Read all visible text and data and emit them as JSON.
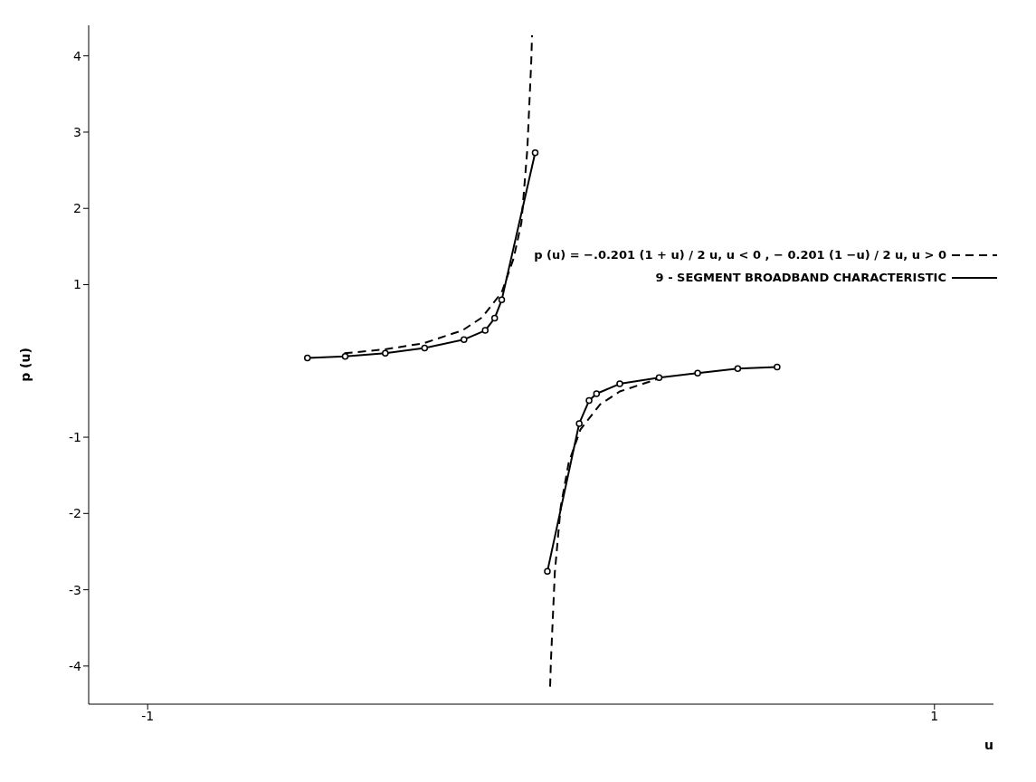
{
  "chart_data": {
    "type": "line",
    "xlabel": "u",
    "ylabel": "p (u)",
    "xlim": [
      -1.15,
      1.15
    ],
    "ylim": [
      -4.5,
      4.4
    ],
    "xticks": [
      -1,
      1
    ],
    "yticks": [
      -4,
      -3,
      -2,
      -1,
      1,
      2,
      3,
      4
    ],
    "grid": false,
    "legend": "right",
    "series": [
      {
        "name": "p (u) = −.0.201 (1 + u) / 2 u, u < 0 ,  − 0.201 (1 −u) / 2 u, u > 0",
        "color": "#000000",
        "line_style": "dashed",
        "marker": "none",
        "x": [
          -0.5,
          -0.4,
          -0.3,
          -0.2,
          -0.15,
          -0.1,
          -0.07,
          -0.05,
          -0.035,
          -0.025,
          -0.023,
          0,
          0.023,
          0.025,
          0.035,
          0.05,
          0.07,
          0.1,
          0.15,
          0.2,
          0.3
        ],
        "values": [
          0.1,
          0.15,
          0.23,
          0.4,
          0.57,
          0.9,
          1.34,
          1.81,
          2.77,
          3.92,
          4.27,
          null,
          -4.27,
          -3.94,
          -2.77,
          -1.91,
          -1.34,
          -0.9,
          -0.57,
          -0.4,
          -0.23
        ]
      },
      {
        "name": "9 - SEGMENT BROADBAND CHARACTERISTIC",
        "color": "#000000",
        "line_style": "solid",
        "marker": "circle",
        "x": [
          -0.594,
          -0.498,
          -0.396,
          -0.296,
          -0.196,
          -0.142,
          -0.118,
          -0.1,
          -0.015,
          0,
          0.016,
          0.097,
          0.122,
          0.141,
          0.2,
          0.3,
          0.398,
          0.5,
          0.6
        ],
        "values": [
          0.04,
          0.06,
          0.1,
          0.17,
          0.28,
          0.4,
          0.56,
          0.8,
          2.73,
          null,
          -2.76,
          -0.82,
          -0.52,
          -0.43,
          -0.3,
          -0.22,
          -0.16,
          -0.1,
          -0.08
        ]
      }
    ]
  }
}
